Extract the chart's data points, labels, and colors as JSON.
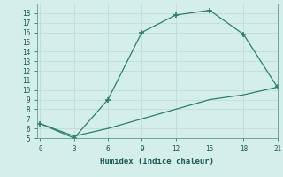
{
  "line1_x": [
    0,
    3,
    6,
    9,
    12,
    15,
    18,
    21
  ],
  "line1_y": [
    6.5,
    5.0,
    9.0,
    16.0,
    17.8,
    18.3,
    15.8,
    10.3
  ],
  "line2_x": [
    0,
    3,
    6,
    9,
    12,
    15,
    18,
    21
  ],
  "line2_y": [
    6.5,
    5.2,
    6.0,
    7.0,
    8.0,
    9.0,
    9.5,
    10.3
  ],
  "color": "#2d7d6e",
  "xlabel": "Humidex (Indice chaleur)",
  "ylim": [
    5,
    19
  ],
  "xlim": [
    -0.3,
    21
  ],
  "yticks": [
    5,
    6,
    7,
    8,
    9,
    10,
    11,
    12,
    13,
    14,
    15,
    16,
    17,
    18
  ],
  "xticks": [
    0,
    3,
    6,
    9,
    12,
    15,
    18,
    21
  ],
  "bg_color": "#d4eeea",
  "grid_color": "#c0ddd8",
  "marker": "+"
}
